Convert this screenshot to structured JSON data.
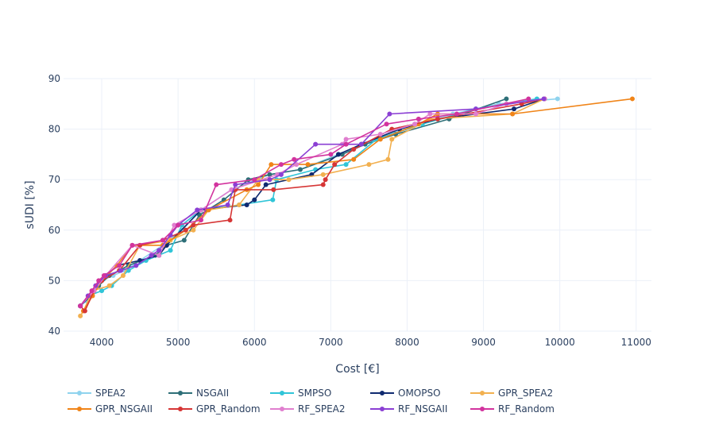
{
  "chart_data": {
    "type": "line",
    "title": "",
    "xlabel": "Cost [€]",
    "ylabel": "sUDI [%]",
    "xlim": [
      3500,
      11200
    ],
    "ylim": [
      40,
      90
    ],
    "x_ticks": [
      4000,
      5000,
      6000,
      7000,
      8000,
      9000,
      10000,
      11000
    ],
    "y_ticks": [
      40,
      50,
      60,
      70,
      80,
      90
    ],
    "grid": true,
    "legend_position": "bottom",
    "series": [
      {
        "name": "SPEA2",
        "color": "#8fd3ee",
        "points": [
          [
            3720,
            45
          ],
          [
            3800,
            46
          ],
          [
            3900,
            48
          ],
          [
            4000,
            50
          ],
          [
            4150,
            51
          ],
          [
            4300,
            52
          ],
          [
            4500,
            54
          ],
          [
            4800,
            57
          ],
          [
            5050,
            60
          ],
          [
            5300,
            64
          ],
          [
            5700,
            68
          ],
          [
            6200,
            71
          ],
          [
            6600,
            72
          ],
          [
            7100,
            75
          ],
          [
            7600,
            78
          ],
          [
            8100,
            81
          ],
          [
            8600,
            83
          ],
          [
            9200,
            85
          ],
          [
            9970,
            86
          ]
        ]
      },
      {
        "name": "NSGAII",
        "color": "#2e6f78",
        "points": [
          [
            3720,
            45
          ],
          [
            3860,
            47
          ],
          [
            3960,
            49
          ],
          [
            4100,
            51
          ],
          [
            4350,
            53
          ],
          [
            4700,
            55
          ],
          [
            4850,
            57
          ],
          [
            5080,
            58
          ],
          [
            5280,
            63
          ],
          [
            5600,
            66
          ],
          [
            5920,
            70
          ],
          [
            6200,
            71
          ],
          [
            6600,
            72
          ],
          [
            7150,
            75
          ],
          [
            7450,
            77
          ],
          [
            7850,
            79
          ],
          [
            8550,
            82
          ],
          [
            9300,
            86
          ]
        ]
      },
      {
        "name": "SMPSO",
        "color": "#30c5d8",
        "points": [
          [
            3720,
            45
          ],
          [
            3830,
            47
          ],
          [
            4000,
            48
          ],
          [
            4130,
            49
          ],
          [
            4350,
            52
          ],
          [
            4580,
            54
          ],
          [
            4900,
            56
          ],
          [
            5050,
            61
          ],
          [
            5300,
            64
          ],
          [
            5800,
            65
          ],
          [
            6240,
            66
          ],
          [
            6290,
            70
          ],
          [
            6800,
            72
          ],
          [
            7200,
            73
          ],
          [
            7600,
            78
          ],
          [
            8200,
            81
          ],
          [
            8900,
            84
          ],
          [
            9700,
            86
          ]
        ]
      },
      {
        "name": "OMOPSO",
        "color": "#0f2a70",
        "points": [
          [
            3720,
            45
          ],
          [
            3850,
            47
          ],
          [
            4000,
            50
          ],
          [
            4200,
            53
          ],
          [
            4500,
            54
          ],
          [
            4750,
            55
          ],
          [
            4850,
            57
          ],
          [
            5300,
            64
          ],
          [
            5900,
            65
          ],
          [
            6000,
            66
          ],
          [
            6150,
            69
          ],
          [
            6750,
            71
          ],
          [
            7100,
            75
          ],
          [
            7400,
            77
          ],
          [
            7900,
            80
          ],
          [
            8400,
            82
          ],
          [
            9400,
            84
          ],
          [
            9800,
            86
          ]
        ]
      },
      {
        "name": "GPR_SPEA2",
        "color": "#f2b04f",
        "points": [
          [
            3720,
            43
          ],
          [
            3760,
            44
          ],
          [
            3880,
            48
          ],
          [
            4100,
            49
          ],
          [
            4280,
            51
          ],
          [
            4500,
            57
          ],
          [
            4900,
            58
          ],
          [
            5200,
            60
          ],
          [
            5400,
            64
          ],
          [
            5800,
            65
          ],
          [
            6050,
            70
          ],
          [
            6450,
            70
          ],
          [
            6900,
            71
          ],
          [
            7500,
            73
          ],
          [
            7750,
            74
          ],
          [
            7800,
            78
          ],
          [
            8300,
            82
          ],
          [
            9380,
            83
          ],
          [
            9800,
            86
          ]
        ]
      },
      {
        "name": "GPR_NSGAII",
        "color": "#f08418",
        "points": [
          [
            3760,
            44
          ],
          [
            3880,
            47
          ],
          [
            4000,
            50
          ],
          [
            4200,
            53
          ],
          [
            4400,
            57
          ],
          [
            4800,
            57
          ],
          [
            5100,
            60
          ],
          [
            5400,
            64
          ],
          [
            5900,
            68
          ],
          [
            6050,
            69
          ],
          [
            6220,
            73
          ],
          [
            6700,
            73
          ],
          [
            7300,
            74
          ],
          [
            7650,
            78
          ],
          [
            8150,
            81
          ],
          [
            8400,
            83
          ],
          [
            9380,
            83
          ],
          [
            10950,
            86
          ]
        ]
      },
      {
        "name": "GPR_Random",
        "color": "#d63636",
        "points": [
          [
            3720,
            45
          ],
          [
            3780,
            44
          ],
          [
            3900,
            48
          ],
          [
            4000,
            50
          ],
          [
            4230,
            52
          ],
          [
            4500,
            57
          ],
          [
            4800,
            58
          ],
          [
            5100,
            60
          ],
          [
            5200,
            61
          ],
          [
            5680,
            62
          ],
          [
            5750,
            68
          ],
          [
            6250,
            68
          ],
          [
            6900,
            69
          ],
          [
            6930,
            70
          ],
          [
            7050,
            73
          ],
          [
            7300,
            76
          ],
          [
            7800,
            80
          ],
          [
            8400,
            82
          ],
          [
            9500,
            85
          ],
          [
            9800,
            86
          ]
        ]
      },
      {
        "name": "RF_SPEA2",
        "color": "#e07fcf",
        "points": [
          [
            3720,
            45
          ],
          [
            3900,
            48
          ],
          [
            4050,
            51
          ],
          [
            4400,
            57
          ],
          [
            4750,
            55
          ],
          [
            4950,
            61
          ],
          [
            5300,
            64
          ],
          [
            5700,
            68
          ],
          [
            6300,
            71
          ],
          [
            6550,
            73
          ],
          [
            7150,
            77
          ],
          [
            7200,
            78
          ],
          [
            7650,
            79
          ],
          [
            8100,
            81
          ],
          [
            8300,
            83
          ],
          [
            8900,
            83
          ],
          [
            9300,
            85
          ],
          [
            9800,
            86
          ]
        ]
      },
      {
        "name": "RF_NSGAII",
        "color": "#8b3fd4",
        "points": [
          [
            3720,
            45
          ],
          [
            3820,
            47
          ],
          [
            3920,
            49
          ],
          [
            4050,
            51
          ],
          [
            4250,
            52
          ],
          [
            4450,
            53
          ],
          [
            4650,
            55
          ],
          [
            4750,
            56
          ],
          [
            4900,
            59
          ],
          [
            5000,
            61
          ],
          [
            5250,
            64
          ],
          [
            5650,
            65
          ],
          [
            5750,
            69
          ],
          [
            6200,
            70
          ],
          [
            6350,
            71
          ],
          [
            6800,
            77
          ],
          [
            7200,
            77
          ],
          [
            7400,
            77
          ],
          [
            7770,
            83
          ],
          [
            8900,
            84
          ],
          [
            9790,
            86
          ]
        ]
      },
      {
        "name": "RF_Random",
        "color": "#d2339e",
        "points": [
          [
            3720,
            45
          ],
          [
            3870,
            48
          ],
          [
            3960,
            50
          ],
          [
            4030,
            51
          ],
          [
            4230,
            53
          ],
          [
            4400,
            57
          ],
          [
            4800,
            58
          ],
          [
            5000,
            61
          ],
          [
            5300,
            62
          ],
          [
            5500,
            69
          ],
          [
            6000,
            70
          ],
          [
            6350,
            73
          ],
          [
            6520,
            74
          ],
          [
            7000,
            75
          ],
          [
            7200,
            77
          ],
          [
            7730,
            81
          ],
          [
            8150,
            82
          ],
          [
            8650,
            83
          ],
          [
            9590,
            86
          ]
        ]
      }
    ]
  }
}
